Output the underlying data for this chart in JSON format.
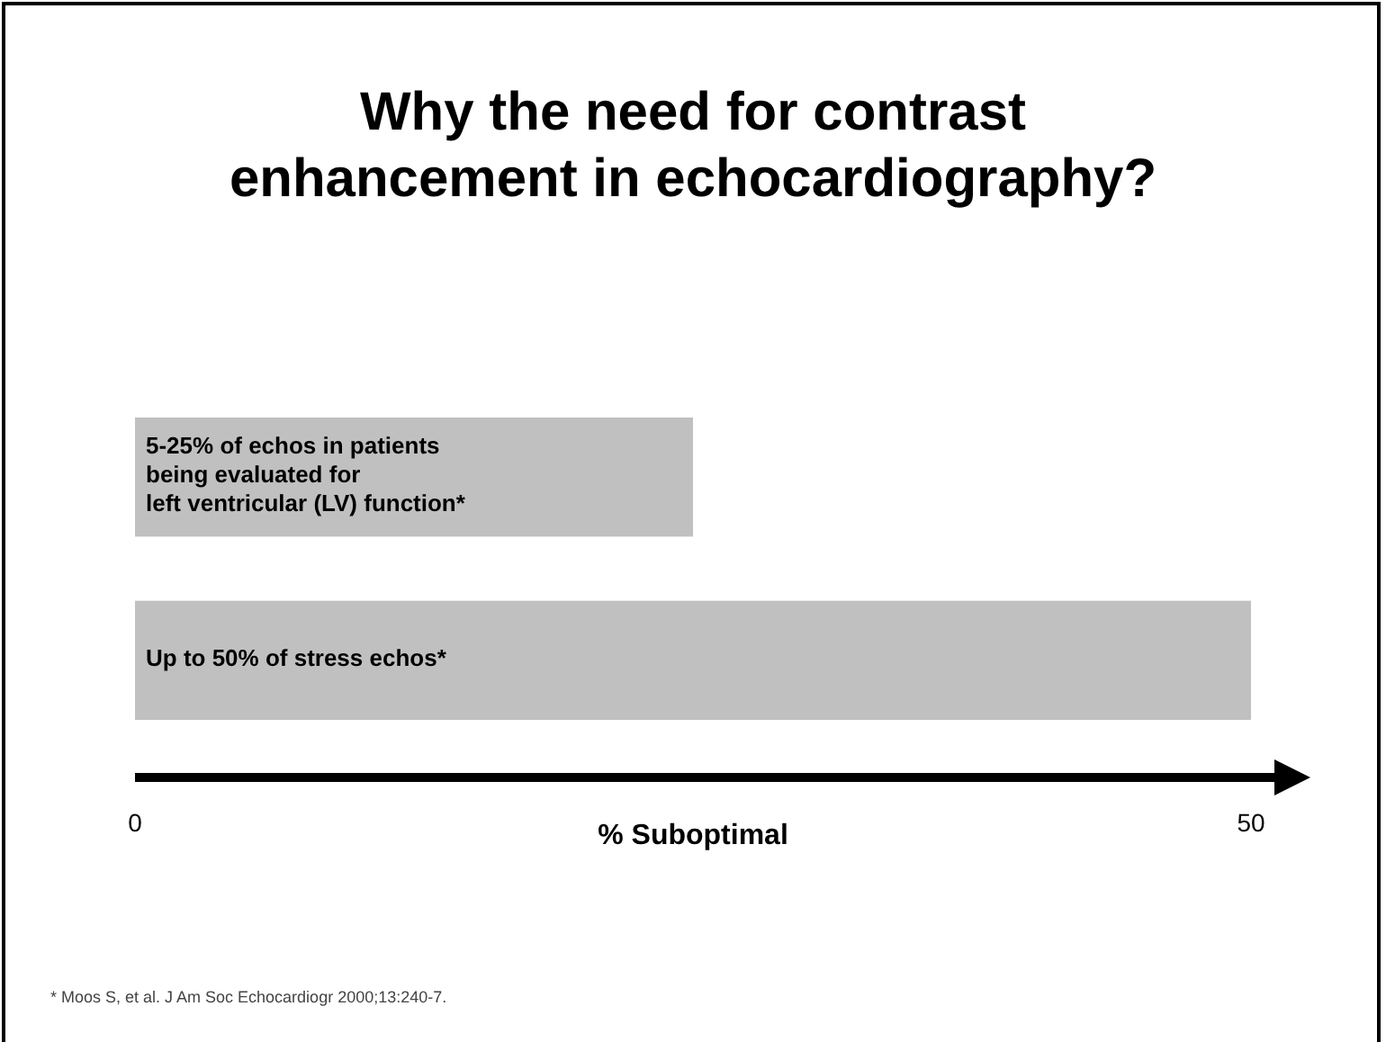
{
  "chart_data": {
    "type": "bar",
    "orientation": "horizontal",
    "title": "Why the need for contrast\nenhancement in echocardiography?",
    "categories": [
      "5-25% of echos in patients\nbeing evaluated for\nleft ventricular (LV) function*",
      "Up to 50% of stress echos*"
    ],
    "values": [
      25,
      50
    ],
    "color": "#c0c0c0",
    "xlim": [
      0,
      50
    ],
    "xticks": [
      0,
      50
    ],
    "xlabel": "% Suboptimal",
    "annotations": [
      "* Moos S, et al.  J Am Soc Echocardiogr 2000;13:240-7."
    ]
  }
}
